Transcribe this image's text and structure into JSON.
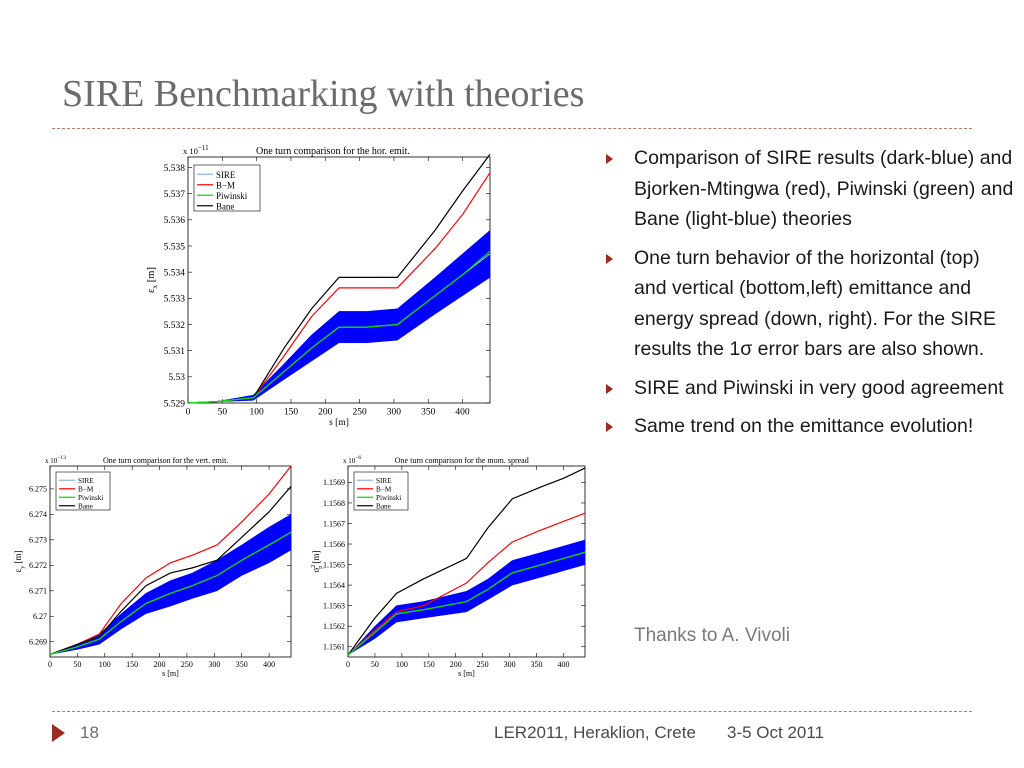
{
  "slide": {
    "title": "SIRE Benchmarking with theories",
    "bullets": [
      "Comparison of SIRE results (dark-blue) and Bjorken-Mtingwa (red), Piwinski (green) and Bane (light-blue) theories",
      "One turn behavior of the horizontal (top) and vertical (bottom,left) emittance and energy spread (down, right). For the SIRE results the 1σ error bars are also shown.",
      "SIRE and Piwinski in very good agreement",
      "Same trend on the emittance evolution!"
    ],
    "thanks": "Thanks to A. Vivoli",
    "page_number": "18",
    "footer_event": "LER2011, Heraklion, Crete",
    "footer_date": "3-5 Oct 2011"
  },
  "colors": {
    "title": "#6b6b6b",
    "accent": "#9c2a1e",
    "SIRE": "#0000ff",
    "SIRE_line": "#8fb0e0",
    "B-M": "#ff0000",
    "Piwinski": "#00dd00",
    "Bane": "#000000"
  },
  "chart_data": [
    {
      "type": "line",
      "title": "One turn comparison for the hor. emit.",
      "multiplier": "x 10",
      "multiplier_exp": "−11",
      "xlabel": "s [m]",
      "ylabel_main": "ε",
      "ylabel_sub": "x",
      "ylabel_unit": " [m]",
      "xlim": [
        0,
        440
      ],
      "ylim": [
        5.529,
        5.5384
      ],
      "xticks": [
        0,
        50,
        100,
        150,
        200,
        250,
        300,
        350,
        400
      ],
      "yticks": [
        5.529,
        5.53,
        5.531,
        5.532,
        5.533,
        5.534,
        5.535,
        5.536,
        5.537,
        5.538
      ],
      "legend": [
        "SIRE",
        "B−M",
        "Piwinski",
        "Bane"
      ],
      "series": [
        {
          "name": "SIRE",
          "x": [
            0,
            40,
            95,
            140,
            180,
            220,
            260,
            305,
            360,
            400,
            440
          ],
          "y": [
            5.529,
            5.52905,
            5.5292,
            5.5302,
            5.5311,
            5.5319,
            5.5319,
            5.532,
            5.5331,
            5.5339,
            5.5347
          ],
          "band": [
            0.0,
            0.0,
            0.0001,
            0.0003,
            0.0005,
            0.0006,
            0.0006,
            0.0006,
            0.0007,
            0.0008,
            0.0009
          ]
        },
        {
          "name": "B−M",
          "x": [
            0,
            40,
            95,
            140,
            180,
            220,
            260,
            305,
            360,
            400,
            440
          ],
          "y": [
            5.529,
            5.52905,
            5.5292,
            5.5308,
            5.5323,
            5.5334,
            5.5334,
            5.5334,
            5.5349,
            5.5362,
            5.5378
          ]
        },
        {
          "name": "Piwinski",
          "x": [
            0,
            40,
            95,
            140,
            180,
            220,
            260,
            305,
            360,
            400,
            440
          ],
          "y": [
            5.529,
            5.52905,
            5.5292,
            5.5302,
            5.5311,
            5.5319,
            5.5319,
            5.532,
            5.5331,
            5.5339,
            5.5348
          ]
        },
        {
          "name": "Bane",
          "x": [
            0,
            40,
            95,
            140,
            180,
            220,
            260,
            305,
            360,
            400,
            440
          ],
          "y": [
            5.529,
            5.52905,
            5.5292,
            5.5311,
            5.5326,
            5.5338,
            5.5338,
            5.5338,
            5.5356,
            5.5371,
            5.5385
          ]
        }
      ]
    },
    {
      "type": "line",
      "title": "One turn comparison for the vert. emit.",
      "multiplier": "x 10",
      "multiplier_exp": "−13",
      "xlabel": "s [m]",
      "ylabel_main": "ε",
      "ylabel_sub": "y",
      "ylabel_unit": " [m]",
      "xlim": [
        0,
        440
      ],
      "ylim": [
        6.2684,
        6.2759
      ],
      "xticks": [
        0,
        50,
        100,
        150,
        200,
        250,
        300,
        350,
        400
      ],
      "yticks": [
        6.269,
        6.27,
        6.271,
        6.272,
        6.273,
        6.274,
        6.275
      ],
      "ytick_labels": [
        "6.269",
        "6.27",
        "6.271",
        "6.272",
        "6.273",
        "6.274",
        "6.275"
      ],
      "legend": [
        "SIRE",
        "B−M",
        "Piwinski",
        "Bane"
      ],
      "series": [
        {
          "name": "SIRE",
          "x": [
            0,
            50,
            90,
            130,
            175,
            220,
            260,
            305,
            350,
            400,
            440
          ],
          "y": [
            6.2685,
            6.2688,
            6.2691,
            6.2698,
            6.2705,
            6.2709,
            6.2712,
            6.2716,
            6.2722,
            6.2728,
            6.2733
          ],
          "band": [
            0.0,
            0.0001,
            0.0002,
            0.0003,
            0.0004,
            0.0005,
            0.0005,
            0.0006,
            0.0006,
            0.0007,
            0.0007
          ]
        },
        {
          "name": "B−M",
          "x": [
            0,
            50,
            90,
            130,
            175,
            220,
            260,
            305,
            350,
            400,
            440
          ],
          "y": [
            6.2685,
            6.2689,
            6.2693,
            6.2705,
            6.2715,
            6.2721,
            6.2724,
            6.2728,
            6.2737,
            6.2748,
            6.2759
          ]
        },
        {
          "name": "Piwinski",
          "x": [
            0,
            50,
            90,
            130,
            175,
            220,
            260,
            305,
            350,
            400,
            440
          ],
          "y": [
            6.2685,
            6.2688,
            6.2691,
            6.2698,
            6.2705,
            6.2709,
            6.2712,
            6.2716,
            6.2722,
            6.2728,
            6.2733
          ]
        },
        {
          "name": "Bane",
          "x": [
            0,
            50,
            90,
            130,
            175,
            220,
            260,
            305,
            350,
            400,
            440
          ],
          "y": [
            6.2685,
            6.2689,
            6.2692,
            6.2702,
            6.2712,
            6.2717,
            6.2719,
            6.2722,
            6.2731,
            6.2741,
            6.2751
          ]
        }
      ]
    },
    {
      "type": "line",
      "title": "One turn comparison for the mom. spread",
      "multiplier": "x 10",
      "multiplier_exp": "−6",
      "xlabel": "s [m]",
      "ylabel_main": "σ",
      "ylabel_sub": "p",
      "ylabel_sup": "2",
      "ylabel_unit": " [m]",
      "xlim": [
        0,
        440
      ],
      "ylim": [
        1.15605,
        1.15698
      ],
      "xticks": [
        0,
        50,
        100,
        150,
        200,
        250,
        300,
        350,
        400
      ],
      "yticks": [
        1.1561,
        1.1562,
        1.1563,
        1.1564,
        1.1565,
        1.1566,
        1.1567,
        1.1568,
        1.1569
      ],
      "legend": [
        "SIRE",
        "B−M",
        "Piwinski",
        "Bane"
      ],
      "series": [
        {
          "name": "SIRE",
          "x": [
            0,
            50,
            90,
            140,
            220,
            260,
            305,
            360,
            400,
            440
          ],
          "y": [
            1.15606,
            1.15617,
            1.15626,
            1.15628,
            1.15632,
            1.15638,
            1.15646,
            1.1565,
            1.15653,
            1.15656
          ],
          "band": [
            0.0,
            3e-05,
            4e-05,
            4e-05,
            5e-05,
            5e-05,
            6e-05,
            6e-05,
            6e-05,
            6e-05
          ]
        },
        {
          "name": "B−M",
          "x": [
            0,
            50,
            90,
            140,
            220,
            260,
            305,
            360,
            400,
            440
          ],
          "y": [
            1.15606,
            1.15618,
            1.15627,
            1.1563,
            1.15641,
            1.15651,
            1.15661,
            1.15667,
            1.15671,
            1.15675
          ]
        },
        {
          "name": "Piwinski",
          "x": [
            0,
            50,
            90,
            140,
            220,
            260,
            305,
            360,
            400,
            440
          ],
          "y": [
            1.15606,
            1.15617,
            1.15626,
            1.15628,
            1.15632,
            1.15638,
            1.15646,
            1.1565,
            1.15653,
            1.15656
          ]
        },
        {
          "name": "Bane",
          "x": [
            0,
            50,
            90,
            140,
            220,
            260,
            305,
            360,
            400,
            440
          ],
          "y": [
            1.15606,
            1.15624,
            1.15636,
            1.15643,
            1.15653,
            1.15668,
            1.15682,
            1.15688,
            1.15692,
            1.15697
          ]
        }
      ]
    }
  ]
}
